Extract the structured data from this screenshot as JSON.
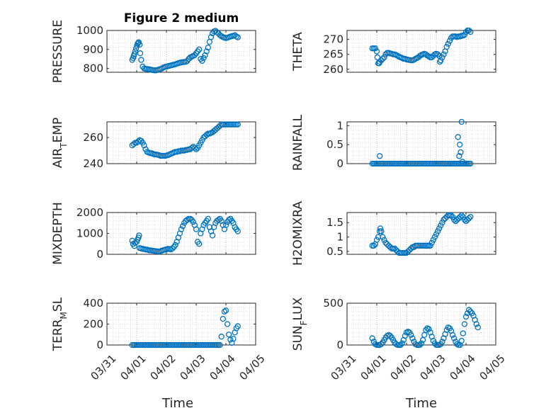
{
  "chart_data": [
    {
      "type": "scatter",
      "title": "Figure 2 medium",
      "ylabel": "PRESSURE",
      "xlabel": "",
      "xlim": [
        0,
        5
      ],
      "ylim": [
        780,
        1000
      ],
      "yticks": [
        800,
        900,
        1000
      ],
      "ytick_labels": [
        "800",
        "900",
        "1000"
      ],
      "xticks": [
        0,
        1,
        2,
        3,
        4,
        5
      ],
      "xtick_labels": [],
      "grid": "on-minor",
      "x": [
        0.85,
        0.88,
        0.9,
        0.92,
        0.95,
        0.98,
        1.01,
        1.03,
        1.05,
        1.07,
        1.1,
        1.12,
        1.15,
        1.2,
        1.25,
        1.3,
        1.35,
        1.4,
        1.45,
        1.5,
        1.55,
        1.6,
        1.65,
        1.7,
        1.75,
        1.8,
        1.85,
        1.9,
        1.95,
        2.0,
        2.05,
        2.1,
        2.15,
        2.2,
        2.25,
        2.3,
        2.35,
        2.4,
        2.45,
        2.5,
        2.55,
        2.6,
        2.65,
        2.7,
        2.75,
        2.8,
        2.85,
        2.9,
        2.95,
        3.0,
        3.05,
        3.1,
        3.15,
        3.2,
        3.25,
        3.3,
        3.35,
        3.4,
        3.45,
        3.5,
        3.55,
        3.6,
        3.65,
        3.7,
        3.75,
        3.8,
        3.85,
        3.9,
        3.95,
        4.0,
        4.05,
        4.1,
        4.15,
        4.2,
        4.25,
        4.3,
        4.35,
        4.4
      ],
      "y": [
        845,
        855,
        865,
        875,
        890,
        905,
        920,
        930,
        935,
        938,
        925,
        880,
        845,
        810,
        800,
        798,
        797,
        796,
        795,
        793,
        791,
        790,
        790,
        792,
        795,
        797,
        800,
        805,
        808,
        810,
        812,
        814,
        816,
        818,
        820,
        822,
        825,
        828,
        830,
        832,
        833,
        834,
        835,
        840,
        850,
        858,
        862,
        866,
        870,
        880,
        890,
        900,
        850,
        840,
        855,
        870,
        890,
        910,
        940,
        965,
        985,
        995,
        998,
        990,
        985,
        975,
        970,
        965,
        962,
        960,
        962,
        965,
        968,
        970,
        972,
        975,
        968,
        964
      ]
    },
    {
      "type": "scatter",
      "title": "",
      "ylabel": "THETA",
      "xlabel": "",
      "xlim": [
        0,
        5
      ],
      "ylim": [
        259,
        273
      ],
      "yticks": [
        260,
        265,
        270
      ],
      "ytick_labels": [
        "260",
        "265",
        "270"
      ],
      "xticks": [
        0,
        1,
        2,
        3,
        4,
        5
      ],
      "xtick_labels": [],
      "grid": "on-minor",
      "x": [
        0.85,
        0.9,
        0.95,
        1.0,
        1.02,
        1.05,
        1.08,
        1.1,
        1.15,
        1.2,
        1.25,
        1.3,
        1.35,
        1.4,
        1.45,
        1.5,
        1.55,
        1.6,
        1.65,
        1.7,
        1.75,
        1.8,
        1.85,
        1.9,
        1.95,
        2.0,
        2.05,
        2.1,
        2.15,
        2.2,
        2.25,
        2.3,
        2.35,
        2.4,
        2.45,
        2.5,
        2.55,
        2.6,
        2.65,
        2.7,
        2.75,
        2.8,
        2.85,
        2.9,
        2.95,
        3.0,
        3.05,
        3.1,
        3.12,
        3.15,
        3.2,
        3.25,
        3.3,
        3.35,
        3.4,
        3.45,
        3.5,
        3.55,
        3.6,
        3.65,
        3.7,
        3.75,
        3.8,
        3.85,
        3.9,
        3.95,
        4.0,
        4.05,
        4.1,
        4.15
      ],
      "y": [
        267,
        267,
        267,
        266,
        264,
        262,
        262,
        262.5,
        263,
        263.5,
        264,
        265,
        265.5,
        265.5,
        265.3,
        265.2,
        265,
        265,
        264.8,
        264.5,
        264.2,
        264,
        263.8,
        263.5,
        263.5,
        263.3,
        263.2,
        263.1,
        263,
        263,
        263.2,
        263.5,
        263.8,
        264,
        264.5,
        264.8,
        265,
        265.2,
        265,
        264.6,
        264.3,
        264,
        264,
        264.5,
        265,
        265.2,
        265,
        264.5,
        262.5,
        263,
        264,
        265,
        266,
        267.5,
        268.5,
        269.5,
        270.5,
        271,
        271,
        271,
        270.8,
        271,
        271,
        271.2,
        271.3,
        271.5,
        272.5,
        273,
        273,
        272.5
      ]
    },
    {
      "type": "scatter",
      "title": "",
      "ylabel": "AIR_TEMP",
      "xlabel": "",
      "xlim": [
        0,
        5
      ],
      "ylim": [
        240,
        272
      ],
      "yticks": [
        240,
        260
      ],
      "ytick_labels": [
        "240",
        "260"
      ],
      "xticks": [
        0,
        1,
        2,
        3,
        4,
        5
      ],
      "xtick_labels": [],
      "grid": "on-minor",
      "x": [
        0.85,
        0.9,
        0.95,
        1.0,
        1.05,
        1.1,
        1.15,
        1.2,
        1.25,
        1.3,
        1.35,
        1.4,
        1.45,
        1.5,
        1.55,
        1.6,
        1.65,
        1.7,
        1.75,
        1.8,
        1.85,
        1.9,
        1.95,
        2.0,
        2.05,
        2.1,
        2.15,
        2.2,
        2.25,
        2.3,
        2.35,
        2.4,
        2.45,
        2.5,
        2.55,
        2.6,
        2.65,
        2.7,
        2.75,
        2.8,
        2.85,
        2.9,
        2.95,
        3.0,
        3.05,
        3.1,
        3.15,
        3.2,
        3.25,
        3.3,
        3.35,
        3.4,
        3.45,
        3.5,
        3.55,
        3.6,
        3.65,
        3.7,
        3.75,
        3.8,
        3.85,
        3.9,
        3.95,
        4.0,
        4.05,
        4.1,
        4.15,
        4.2,
        4.25,
        4.3,
        4.35,
        4.4
      ],
      "y": [
        254,
        255,
        256,
        256,
        257,
        258,
        257.5,
        256,
        254,
        251,
        249,
        248.5,
        248,
        248,
        247.5,
        247,
        247,
        246.8,
        246.5,
        246,
        246,
        246,
        246,
        246.2,
        246.5,
        247,
        247.5,
        248,
        248.5,
        249,
        249,
        249.5,
        249.5,
        250,
        250,
        250,
        250.5,
        250.5,
        251,
        251,
        252,
        253,
        252,
        251,
        252,
        254,
        256,
        258,
        260,
        261,
        262,
        263,
        263,
        263.5,
        264,
        265,
        266,
        267,
        268,
        269,
        270,
        270,
        270,
        270,
        270,
        270,
        270,
        270,
        270,
        270,
        270,
        270
      ]
    },
    {
      "type": "scatter",
      "title": "",
      "ylabel": "RAINFALL",
      "xlabel": "",
      "xlim": [
        0,
        5
      ],
      "ylim": [
        0,
        1.1
      ],
      "yticks": [
        0,
        0.5,
        1
      ],
      "ytick_labels": [
        "0",
        "0.5",
        "1"
      ],
      "xticks": [
        0,
        1,
        2,
        3,
        4,
        5
      ],
      "xtick_labels": [],
      "grid": "on-minor",
      "x": [
        0.85,
        0.9,
        0.95,
        1.0,
        1.05,
        1.1,
        1.15,
        1.2,
        1.25,
        1.3,
        1.35,
        1.4,
        1.45,
        1.5,
        1.55,
        1.6,
        1.65,
        1.7,
        1.75,
        1.8,
        1.85,
        1.9,
        1.95,
        2.0,
        2.05,
        2.1,
        2.15,
        2.2,
        2.25,
        2.3,
        2.35,
        2.4,
        2.45,
        2.5,
        2.55,
        2.6,
        2.65,
        2.7,
        2.75,
        2.8,
        2.85,
        2.9,
        2.95,
        3.0,
        3.05,
        3.1,
        3.15,
        3.2,
        3.25,
        3.3,
        3.35,
        3.4,
        3.45,
        3.5,
        3.55,
        3.6,
        3.65,
        3.7,
        3.75,
        3.8,
        3.85,
        3.9,
        3.95,
        4.0,
        4.05,
        4.1,
        4.15,
        1.1,
        3.73,
        3.77,
        3.79,
        3.82,
        3.85,
        3.88
      ],
      "y": [
        0,
        0,
        0,
        0,
        0,
        0,
        0,
        0,
        0,
        0,
        0,
        0,
        0,
        0,
        0,
        0,
        0,
        0,
        0,
        0,
        0,
        0,
        0,
        0,
        0,
        0,
        0,
        0,
        0,
        0,
        0,
        0,
        0,
        0,
        0,
        0,
        0,
        0,
        0,
        0,
        0,
        0,
        0,
        0,
        0,
        0,
        0,
        0,
        0,
        0,
        0,
        0,
        0,
        0,
        0,
        0,
        0,
        0,
        0,
        0,
        0,
        0,
        0,
        0,
        0,
        0,
        0,
        0.2,
        0.7,
        0.2,
        0.5,
        0.3,
        1.1,
        0.05
      ]
    },
    {
      "type": "scatter",
      "title": "",
      "ylabel": "MIXDEPTH",
      "xlabel": "",
      "xlim": [
        0,
        5
      ],
      "ylim": [
        0,
        2000
      ],
      "yticks": [
        0,
        1000,
        2000
      ],
      "ytick_labels": [
        "0",
        "1000",
        "2000"
      ],
      "xticks": [
        0,
        1,
        2,
        3,
        4,
        5
      ],
      "xtick_labels": [],
      "grid": "on-minor",
      "x": [
        0.85,
        0.88,
        0.92,
        0.95,
        1.0,
        1.03,
        1.06,
        1.08,
        1.1,
        1.15,
        1.2,
        1.25,
        1.3,
        1.35,
        1.4,
        1.45,
        1.5,
        1.55,
        1.6,
        1.65,
        1.7,
        1.75,
        1.8,
        1.85,
        1.9,
        1.95,
        2.0,
        2.05,
        2.1,
        2.15,
        2.2,
        2.25,
        2.3,
        2.35,
        2.4,
        2.45,
        2.5,
        2.55,
        2.6,
        2.65,
        2.7,
        2.75,
        2.8,
        2.85,
        2.9,
        2.95,
        3.0,
        3.05,
        3.1,
        3.15,
        3.2,
        3.25,
        3.3,
        3.35,
        3.4,
        3.45,
        3.5,
        3.55,
        3.6,
        3.65,
        3.7,
        3.75,
        3.8,
        3.85,
        3.9,
        3.95,
        4.0,
        4.05,
        4.1,
        4.15,
        4.2,
        4.25,
        4.3,
        4.35,
        4.4
      ],
      "y": [
        650,
        500,
        400,
        550,
        600,
        700,
        800,
        900,
        300,
        280,
        260,
        250,
        230,
        220,
        200,
        190,
        180,
        170,
        160,
        150,
        140,
        130,
        150,
        180,
        200,
        220,
        240,
        260,
        250,
        230,
        280,
        350,
        450,
        600,
        800,
        1000,
        1200,
        1350,
        1500,
        1600,
        1650,
        1700,
        1700,
        1650,
        1550,
        1400,
        1200,
        600,
        500,
        1000,
        1200,
        1400,
        1500,
        1600,
        1700,
        1300,
        1100,
        900,
        1300,
        1500,
        1600,
        1650,
        1700,
        1600,
        1400,
        1200,
        1400,
        1550,
        1650,
        1700,
        1600,
        1500,
        1300,
        1200,
        1100
      ]
    },
    {
      "type": "scatter",
      "title": "",
      "ylabel": "H2OMIXRA",
      "xlabel": "",
      "xlim": [
        0,
        5
      ],
      "ylim": [
        0.4,
        1.85
      ],
      "yticks": [
        0.5,
        1,
        1.5
      ],
      "ytick_labels": [
        "0.5",
        "1",
        "1.5"
      ],
      "xticks": [
        0,
        1,
        2,
        3,
        4,
        5
      ],
      "xtick_labels": [],
      "grid": "on-minor",
      "x": [
        0.85,
        0.9,
        0.95,
        1.0,
        1.05,
        1.1,
        1.12,
        1.15,
        1.2,
        1.25,
        1.3,
        1.35,
        1.4,
        1.45,
        1.5,
        1.55,
        1.6,
        1.65,
        1.7,
        1.75,
        1.8,
        1.85,
        1.9,
        1.95,
        2.0,
        2.05,
        2.1,
        2.15,
        2.2,
        2.25,
        2.3,
        2.35,
        2.4,
        2.45,
        2.5,
        2.55,
        2.6,
        2.65,
        2.7,
        2.75,
        2.8,
        2.85,
        2.9,
        2.95,
        3.0,
        3.05,
        3.1,
        3.15,
        3.2,
        3.25,
        3.3,
        3.35,
        3.4,
        3.45,
        3.5,
        3.55,
        3.6,
        3.65,
        3.7,
        3.75,
        3.8,
        3.85,
        3.9,
        3.95,
        4.0,
        4.05,
        4.1,
        4.15
      ],
      "y": [
        0.7,
        0.7,
        0.75,
        0.9,
        1.0,
        1.2,
        1.3,
        1.2,
        1.0,
        0.9,
        0.8,
        0.75,
        0.7,
        0.65,
        0.6,
        0.6,
        0.6,
        0.55,
        0.5,
        0.45,
        0.45,
        0.45,
        0.45,
        0.45,
        0.45,
        0.5,
        0.55,
        0.6,
        0.65,
        0.65,
        0.7,
        0.7,
        0.7,
        0.7,
        0.7,
        0.7,
        0.7,
        0.7,
        0.7,
        0.7,
        0.7,
        0.8,
        0.9,
        1.0,
        1.1,
        1.2,
        1.3,
        1.4,
        1.5,
        1.6,
        1.65,
        1.7,
        1.75,
        1.75,
        1.75,
        1.7,
        1.6,
        1.55,
        1.6,
        1.65,
        1.7,
        1.75,
        1.7,
        1.6,
        1.55,
        1.6,
        1.65,
        1.7
      ]
    },
    {
      "type": "scatter",
      "title": "",
      "ylabel": "TERR_MSL",
      "xlabel": "",
      "xlim": [
        0,
        5
      ],
      "ylim": [
        0,
        400
      ],
      "yticks": [
        0,
        200,
        400
      ],
      "ytick_labels": [
        "0",
        "200",
        "400"
      ],
      "xticks": [
        0,
        1,
        2,
        3,
        4,
        5
      ],
      "xtick_labels": [
        "03/31",
        "04/01",
        "04/02",
        "04/03",
        "04/04",
        "04/05"
      ],
      "grid": "on-minor",
      "x": [
        0.85,
        0.9,
        0.95,
        1.0,
        1.05,
        1.1,
        1.15,
        1.2,
        1.25,
        1.3,
        1.35,
        1.4,
        1.45,
        1.5,
        1.55,
        1.6,
        1.65,
        1.7,
        1.75,
        1.8,
        1.85,
        1.9,
        1.95,
        2.0,
        2.05,
        2.1,
        2.15,
        2.2,
        2.25,
        2.3,
        2.35,
        2.4,
        2.45,
        2.5,
        2.55,
        2.6,
        2.65,
        2.7,
        2.75,
        2.8,
        2.85,
        2.9,
        2.95,
        3.0,
        3.05,
        3.1,
        3.15,
        3.2,
        3.25,
        3.3,
        3.35,
        3.4,
        3.45,
        3.5,
        3.55,
        3.6,
        3.65,
        3.7,
        3.75,
        3.8,
        3.85,
        3.9,
        3.95,
        4.0,
        4.05,
        4.1,
        4.15,
        4.2,
        4.25,
        4.3,
        4.35,
        4.4
      ],
      "y": [
        0,
        0,
        0,
        0,
        0,
        0,
        0,
        0,
        0,
        0,
        0,
        0,
        0,
        0,
        0,
        0,
        0,
        0,
        0,
        0,
        0,
        0,
        0,
        0,
        0,
        0,
        0,
        0,
        0,
        0,
        0,
        0,
        0,
        0,
        0,
        0,
        0,
        0,
        0,
        0,
        0,
        0,
        0,
        0,
        0,
        0,
        0,
        0,
        0,
        0,
        0,
        0,
        0,
        0,
        0,
        0,
        0,
        0,
        0,
        0,
        80,
        250,
        320,
        330,
        200,
        100,
        50,
        20,
        60,
        120,
        160,
        180
      ]
    },
    {
      "type": "scatter",
      "title": "",
      "ylabel": "SUN_FLUX",
      "xlabel": "",
      "xlim": [
        0,
        5
      ],
      "ylim": [
        0,
        500
      ],
      "yticks": [
        0,
        500
      ],
      "ytick_labels": [
        "0",
        "500"
      ],
      "xticks": [
        0,
        1,
        2,
        3,
        4,
        5
      ],
      "xtick_labels": [
        "03/31",
        "04/01",
        "04/02",
        "04/03",
        "04/04",
        "04/05"
      ],
      "grid": "on-minor",
      "x": [
        0.85,
        0.9,
        0.95,
        1.0,
        1.05,
        1.1,
        1.15,
        1.2,
        1.25,
        1.3,
        1.35,
        1.4,
        1.45,
        1.5,
        1.55,
        1.6,
        1.65,
        1.7,
        1.75,
        1.8,
        1.85,
        1.9,
        1.95,
        2.0,
        2.05,
        2.1,
        2.15,
        2.2,
        2.25,
        2.3,
        2.35,
        2.4,
        2.45,
        2.5,
        2.55,
        2.6,
        2.65,
        2.7,
        2.75,
        2.8,
        2.85,
        2.9,
        2.95,
        3.0,
        3.05,
        3.1,
        3.15,
        3.2,
        3.25,
        3.3,
        3.35,
        3.4,
        3.45,
        3.5,
        3.55,
        3.6,
        3.65,
        3.7,
        3.75,
        3.8,
        3.85,
        3.9,
        3.95,
        4.0,
        4.05,
        4.1,
        4.15,
        4.2,
        4.25,
        4.3,
        4.35,
        4.4
      ],
      "y": [
        80,
        40,
        10,
        0,
        0,
        0,
        10,
        30,
        60,
        90,
        110,
        120,
        110,
        90,
        60,
        30,
        10,
        0,
        0,
        0,
        20,
        60,
        110,
        150,
        160,
        150,
        120,
        80,
        40,
        10,
        0,
        0,
        0,
        20,
        60,
        120,
        180,
        200,
        190,
        150,
        100,
        50,
        20,
        0,
        0,
        0,
        10,
        40,
        80,
        130,
        180,
        210,
        200,
        170,
        120,
        80,
        40,
        10,
        0,
        0,
        50,
        140,
        250,
        340,
        380,
        420,
        400,
        380,
        350,
        300,
        250,
        210
      ]
    }
  ],
  "figure": {
    "xlabel_left": "Time",
    "xlabel_right": "Time"
  }
}
